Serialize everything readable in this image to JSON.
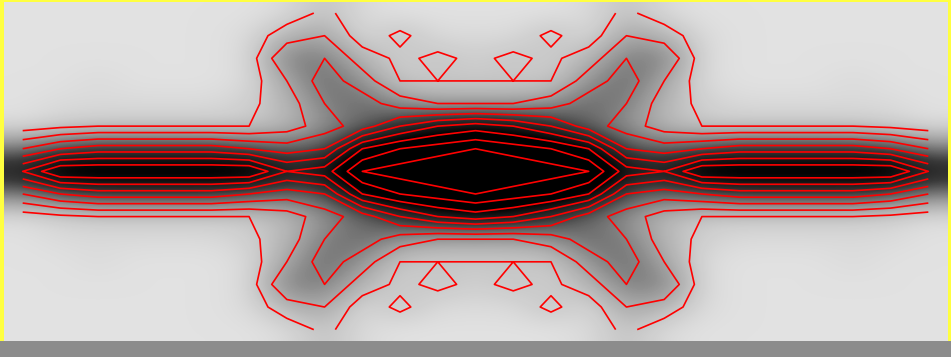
{
  "chart_data": {
    "type": "contour",
    "color": "#ff0000",
    "tick_labels": false,
    "levels": [
      1,
      2,
      3,
      4,
      5,
      6,
      7,
      8,
      9
    ],
    "color_range": [
      0,
      7
    ],
    "cells": [
      [
        0.3,
        0.3,
        0.3,
        0.3,
        0.3,
        0.3,
        0.3,
        0.5,
        1.2,
        0.5,
        0.3,
        0.3,
        0.3,
        0.3,
        0.3,
        0.5,
        1.2,
        0.5,
        0.3,
        0.3,
        0.3,
        0.3,
        0.3,
        0.3,
        0.3
      ],
      [
        0.3,
        0.3,
        0.3,
        0.3,
        0.3,
        0.3,
        0.5,
        1.5,
        2,
        0.5,
        1.2,
        0.5,
        0.5,
        0.5,
        1.2,
        0.5,
        2,
        1.5,
        0.5,
        0.3,
        0.3,
        0.3,
        0.3,
        0.3,
        0.3
      ],
      [
        0.3,
        0.3,
        0.3,
        0.3,
        0.3,
        0.3,
        0.5,
        3,
        3,
        1.5,
        0.8,
        1.2,
        0.8,
        1.2,
        0.8,
        1.5,
        3,
        3,
        0.5,
        0.3,
        0.3,
        0.3,
        0.3,
        0.3,
        0.3
      ],
      [
        0.3,
        0.3,
        0.5,
        0.3,
        0.3,
        0.3,
        0.5,
        2,
        3.5,
        2.5,
        1,
        1,
        1,
        1,
        1,
        2.5,
        3.5,
        2,
        0.5,
        0.3,
        0.3,
        0.3,
        0.5,
        0.3,
        0.3
      ],
      [
        0.3,
        0.5,
        0.5,
        0.5,
        0.5,
        0.5,
        0.8,
        1.5,
        3,
        3.5,
        2.5,
        2,
        2,
        2,
        2.5,
        3.5,
        3,
        1.5,
        0.8,
        0.5,
        0.5,
        0.5,
        0.5,
        0.5,
        0.3
      ],
      [
        0.5,
        0.8,
        1,
        1,
        1,
        1,
        1,
        1.5,
        2.5,
        3.5,
        5,
        6,
        6.5,
        6,
        5,
        3.5,
        2.5,
        1.5,
        1,
        1,
        1,
        1,
        1,
        0.8,
        0.5
      ],
      [
        3,
        4,
        4.5,
        4.5,
        4.5,
        4.5,
        4,
        3.5,
        4,
        7,
        8,
        8.5,
        9,
        8.5,
        8,
        7,
        4,
        3.5,
        4,
        4.5,
        4.5,
        4.5,
        4.5,
        4,
        3
      ],
      [
        6,
        8,
        8,
        8,
        8,
        8,
        8,
        6,
        6.5,
        9,
        9.5,
        10,
        10,
        10,
        9.5,
        9,
        6.5,
        6,
        8,
        8,
        8,
        8,
        8,
        8,
        6
      ],
      [
        3,
        4,
        4.5,
        4.5,
        4.5,
        4.5,
        4,
        3.5,
        4,
        7,
        8,
        8.5,
        9,
        8.5,
        8,
        7,
        4,
        3.5,
        4,
        4.5,
        4.5,
        4.5,
        4.5,
        4,
        3
      ],
      [
        0.5,
        0.8,
        1,
        1,
        1,
        1,
        1,
        1.5,
        2.5,
        3.5,
        5,
        6,
        6.5,
        6,
        5,
        3.5,
        2.5,
        1.5,
        1,
        1,
        1,
        1,
        1,
        0.8,
        0.5
      ],
      [
        0.3,
        0.5,
        0.5,
        0.5,
        0.5,
        0.5,
        0.8,
        1.5,
        3,
        3.5,
        2.5,
        2,
        2,
        2,
        2.5,
        3.5,
        3,
        1.5,
        0.8,
        0.5,
        0.5,
        0.5,
        0.5,
        0.5,
        0.3
      ],
      [
        0.3,
        0.3,
        0.5,
        0.3,
        0.3,
        0.3,
        0.5,
        2,
        3.5,
        2.5,
        1,
        1,
        1,
        1,
        1,
        2.5,
        3.5,
        2,
        0.5,
        0.3,
        0.3,
        0.3,
        0.5,
        0.3,
        0.3
      ],
      [
        0.3,
        0.3,
        0.3,
        0.3,
        0.3,
        0.3,
        0.5,
        3,
        3,
        1.5,
        0.8,
        1.2,
        0.8,
        1.2,
        0.8,
        1.5,
        3,
        3,
        0.5,
        0.3,
        0.3,
        0.3,
        0.3,
        0.3,
        0.3
      ],
      [
        0.3,
        0.3,
        0.3,
        0.3,
        0.3,
        0.3,
        0.5,
        1.5,
        2,
        0.5,
        1.2,
        0.5,
        0.5,
        0.5,
        1.2,
        0.5,
        2,
        1.5,
        0.5,
        0.3,
        0.3,
        0.3,
        0.3,
        0.3,
        0.3
      ],
      [
        0.3,
        0.3,
        0.3,
        0.3,
        0.3,
        0.3,
        0.3,
        0.5,
        1.2,
        0.5,
        0.3,
        0.3,
        0.3,
        0.3,
        0.3,
        0.5,
        1.2,
        0.5,
        0.3,
        0.3,
        0.3,
        0.3,
        0.3,
        0.3,
        0.3
      ]
    ]
  }
}
